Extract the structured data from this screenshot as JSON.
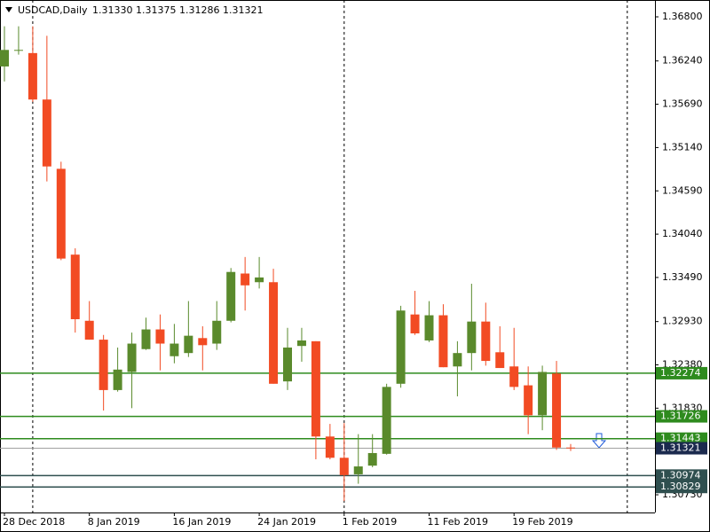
{
  "chart_data": {
    "type": "candlestick",
    "title": "USDCAD,Daily",
    "quote": [
      "1.31330",
      "1.31375",
      "1.31286",
      "1.31321"
    ],
    "categories": [
      "28 Dec 2018",
      null,
      null,
      null,
      null,
      null,
      "8 Jan 2019",
      null,
      null,
      null,
      null,
      null,
      "16 Jan 2019",
      null,
      null,
      null,
      null,
      null,
      "24 Jan 2019",
      null,
      null,
      null,
      null,
      null,
      "1 Feb 2019",
      null,
      null,
      null,
      null,
      null,
      "11 Feb 2019",
      null,
      null,
      null,
      null,
      null,
      "19 Feb 2019",
      null,
      null,
      null,
      null
    ],
    "open": [
      1.3617,
      1.3637,
      1.3634,
      1.3575,
      1.3487,
      1.3378,
      1.3294,
      1.327,
      1.3206,
      1.3229,
      1.3258,
      1.3283,
      1.3249,
      1.3253,
      1.3272,
      1.3265,
      1.3294,
      1.3354,
      1.3343,
      1.3343,
      1.3217,
      1.3262,
      1.3268,
      1.3147,
      1.312,
      1.3099,
      1.311,
      1.3125,
      1.3214,
      1.3302,
      1.3269,
      1.3301,
      1.3236,
      1.3253,
      1.3293,
      1.3254,
      1.3236,
      1.3212,
      1.3174,
      1.3227,
      1.3133
    ],
    "high": [
      1.3668,
      1.3668,
      1.3668,
      1.3656,
      1.3496,
      1.3386,
      1.3319,
      1.3276,
      1.326,
      1.3279,
      1.3298,
      1.3302,
      1.329,
      1.3319,
      1.3287,
      1.3319,
      1.3361,
      1.3375,
      1.3375,
      1.336,
      1.3285,
      1.3285,
      1.3268,
      1.3163,
      1.3164,
      1.315,
      1.315,
      1.3214,
      1.3313,
      1.3332,
      1.3319,
      1.3315,
      1.3268,
      1.3341,
      1.3317,
      1.3287,
      1.3285,
      1.3236,
      1.3237,
      1.3243,
      1.31375
    ],
    "low": [
      1.3598,
      1.3632,
      1.3572,
      1.3471,
      1.3371,
      1.3279,
      1.327,
      1.318,
      1.3204,
      1.3183,
      1.3257,
      1.3231,
      1.324,
      1.3248,
      1.3231,
      1.3257,
      1.3292,
      1.3307,
      1.3335,
      1.3214,
      1.3206,
      1.3242,
      1.3118,
      1.3118,
      1.3065,
      1.3087,
      1.3108,
      1.3124,
      1.3209,
      1.3276,
      1.3267,
      1.3235,
      1.3198,
      1.3231,
      1.3237,
      1.3234,
      1.3206,
      1.315,
      1.3155,
      1.313,
      1.31286
    ],
    "close": [
      1.3638,
      1.3638,
      1.3575,
      1.349,
      1.3373,
      1.3296,
      1.327,
      1.3206,
      1.3232,
      1.3265,
      1.3283,
      1.3265,
      1.3265,
      1.3275,
      1.3263,
      1.3294,
      1.3356,
      1.3339,
      1.3349,
      1.3214,
      1.326,
      1.3269,
      1.3147,
      1.312,
      1.3098,
      1.3109,
      1.3126,
      1.321,
      1.3307,
      1.3278,
      1.3301,
      1.3235,
      1.3253,
      1.3293,
      1.3243,
      1.3234,
      1.321,
      1.3174,
      1.3229,
      1.3133,
      1.31321
    ],
    "up_color": "#5a8a2c",
    "down_color": "#f24b23",
    "ylim": [
      1.30505,
      1.37014
    ],
    "yticks": [
      {
        "value": 1.368,
        "label": "1.36800"
      },
      {
        "value": 1.3624,
        "label": "1.36240"
      },
      {
        "value": 1.3569,
        "label": "1.35690"
      },
      {
        "value": 1.3514,
        "label": "1.35140"
      },
      {
        "value": 1.3459,
        "label": "1.34590"
      },
      {
        "value": 1.3404,
        "label": "1.34040"
      },
      {
        "value": 1.3349,
        "label": "1.33490"
      },
      {
        "value": 1.3293,
        "label": "1.32930"
      },
      {
        "value": 1.3238,
        "label": "1.32380"
      },
      {
        "value": 1.3183,
        "label": "1.31830"
      },
      {
        "value": 1.3073,
        "label": "1.30730"
      }
    ],
    "levels": [
      {
        "value": 1.32274,
        "color": "#2e8b1e"
      },
      {
        "value": 1.31726,
        "color": "#2e8b1e"
      },
      {
        "value": 1.31443,
        "color": "#2e8b1e"
      },
      {
        "value": 1.31321,
        "color": "#1b2a4e"
      },
      {
        "value": 1.30974,
        "color": "#2f4f4f"
      },
      {
        "value": 1.30829,
        "color": "#2f4f4f"
      }
    ]
  }
}
